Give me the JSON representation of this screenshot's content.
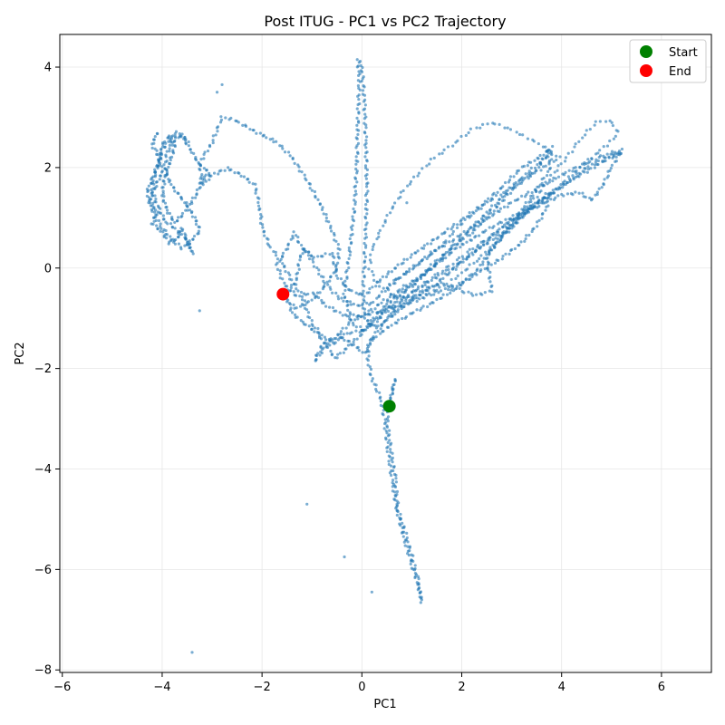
{
  "chart_data": {
    "type": "scatter",
    "title": "Post ITUG - PC1 vs PC2 Trajectory",
    "xlabel": "PC1",
    "ylabel": "PC2",
    "xlim": [
      -6.05,
      7.0
    ],
    "ylim": [
      -8.05,
      4.65
    ],
    "xticks": [
      -6,
      -4,
      -2,
      0,
      2,
      4,
      6
    ],
    "yticks": [
      -8,
      -6,
      -4,
      -2,
      0,
      2,
      4
    ],
    "grid": true,
    "legend_position": "top-right",
    "trajectory_color": "#1f77b4",
    "trajectory_path": [
      [
        0.55,
        -2.75
      ],
      [
        0.62,
        -2.45
      ],
      [
        0.66,
        -2.2
      ],
      [
        0.58,
        -2.6
      ],
      [
        0.5,
        -3.0
      ],
      [
        0.58,
        -3.6
      ],
      [
        0.67,
        -4.2
      ],
      [
        0.72,
        -4.8
      ],
      [
        0.88,
        -5.3
      ],
      [
        1.02,
        -5.8
      ],
      [
        1.12,
        -6.2
      ],
      [
        1.2,
        -6.65
      ],
      [
        1.12,
        -6.3
      ],
      [
        1.0,
        -5.9
      ],
      [
        0.85,
        -5.4
      ],
      [
        0.7,
        -4.8
      ],
      [
        0.6,
        -4.2
      ],
      [
        0.52,
        -3.6
      ],
      [
        0.45,
        -3.0
      ],
      [
        0.38,
        -2.6
      ],
      [
        0.2,
        -2.2
      ],
      [
        0.12,
        -1.8
      ],
      [
        0.15,
        -1.45
      ],
      [
        0.3,
        -1.35
      ],
      [
        0.5,
        -1.2
      ],
      [
        0.9,
        -0.95
      ],
      [
        1.4,
        -0.7
      ],
      [
        1.9,
        -0.4
      ],
      [
        2.3,
        -0.05
      ],
      [
        2.6,
        0.35
      ],
      [
        2.9,
        0.75
      ],
      [
        3.2,
        1.15
      ],
      [
        3.5,
        1.55
      ],
      [
        3.75,
        1.95
      ],
      [
        3.8,
        2.3
      ],
      [
        3.5,
        2.05
      ],
      [
        3.1,
        1.7
      ],
      [
        2.7,
        1.3
      ],
      [
        2.3,
        0.9
      ],
      [
        1.9,
        0.5
      ],
      [
        1.4,
        0.05
      ],
      [
        1.0,
        -0.35
      ],
      [
        0.6,
        -0.7
      ],
      [
        0.3,
        -1.0
      ],
      [
        0.05,
        -1.25
      ],
      [
        -0.2,
        -1.1
      ],
      [
        -0.35,
        -0.5
      ],
      [
        -0.25,
        0.3
      ],
      [
        -0.15,
        1.2
      ],
      [
        -0.1,
        2.1
      ],
      [
        -0.08,
        3.0
      ],
      [
        -0.05,
        3.7
      ],
      [
        -0.08,
        4.15
      ],
      [
        0.0,
        4.0
      ],
      [
        0.05,
        3.3
      ],
      [
        0.08,
        2.5
      ],
      [
        0.1,
        1.6
      ],
      [
        0.08,
        0.8
      ],
      [
        0.05,
        0.1
      ],
      [
        0.02,
        -0.5
      ],
      [
        0.05,
        -1.0
      ],
      [
        0.3,
        -1.2
      ],
      [
        0.6,
        -0.95
      ],
      [
        1.0,
        -0.65
      ],
      [
        1.5,
        -0.3
      ],
      [
        2.0,
        0.1
      ],
      [
        2.5,
        0.55
      ],
      [
        3.0,
        0.95
      ],
      [
        3.6,
        1.35
      ],
      [
        4.2,
        1.75
      ],
      [
        4.8,
        2.1
      ],
      [
        5.2,
        2.3
      ],
      [
        5.0,
        2.25
      ],
      [
        4.5,
        2.0
      ],
      [
        3.9,
        1.55
      ],
      [
        3.3,
        1.1
      ],
      [
        2.8,
        0.7
      ],
      [
        2.3,
        0.35
      ],
      [
        1.8,
        0.0
      ],
      [
        1.3,
        -0.3
      ],
      [
        0.9,
        -0.55
      ],
      [
        0.55,
        -0.8
      ],
      [
        0.3,
        -1.05
      ],
      [
        0.0,
        -1.25
      ],
      [
        -0.3,
        -1.3
      ],
      [
        -0.55,
        -1.5
      ],
      [
        -0.8,
        -1.35
      ],
      [
        -1.0,
        -1.1
      ],
      [
        -1.1,
        -0.85
      ],
      [
        -1.2,
        -0.55
      ],
      [
        -1.4,
        -0.25
      ],
      [
        -1.6,
        0.1
      ],
      [
        -1.85,
        0.45
      ],
      [
        -2.0,
        0.8
      ],
      [
        -2.05,
        1.25
      ],
      [
        -2.15,
        1.65
      ],
      [
        -2.4,
        1.85
      ],
      [
        -2.7,
        1.98
      ],
      [
        -3.0,
        1.85
      ],
      [
        -3.2,
        1.65
      ],
      [
        -3.25,
        2.1
      ],
      [
        -3.0,
        2.5
      ],
      [
        -2.8,
        3.0
      ],
      [
        -2.55,
        2.95
      ],
      [
        -2.3,
        2.8
      ],
      [
        -2.0,
        2.65
      ],
      [
        -1.7,
        2.5
      ],
      [
        -1.4,
        2.2
      ],
      [
        -1.1,
        1.75
      ],
      [
        -0.8,
        1.2
      ],
      [
        -0.6,
        0.75
      ],
      [
        -0.45,
        0.35
      ],
      [
        -0.5,
        0.0
      ],
      [
        -0.7,
        -0.3
      ],
      [
        -0.9,
        -0.55
      ],
      [
        -1.1,
        -0.7
      ],
      [
        -1.35,
        -0.8
      ],
      [
        -1.5,
        -0.6
      ],
      [
        -1.4,
        -0.9
      ],
      [
        -1.15,
        -1.1
      ],
      [
        -0.9,
        -1.3
      ],
      [
        -0.7,
        -1.55
      ],
      [
        -0.55,
        -1.8
      ],
      [
        -0.3,
        -1.6
      ],
      [
        -0.05,
        -1.35
      ],
      [
        0.2,
        -1.05
      ],
      [
        0.45,
        -0.75
      ],
      [
        0.75,
        -0.5
      ],
      [
        1.05,
        -0.3
      ],
      [
        1.35,
        -0.05
      ],
      [
        1.6,
        0.2
      ],
      [
        1.85,
        0.45
      ],
      [
        2.2,
        0.7
      ],
      [
        2.6,
        1.1
      ],
      [
        3.0,
        1.55
      ],
      [
        3.5,
        1.95
      ],
      [
        3.8,
        2.4
      ],
      [
        3.55,
        2.2
      ],
      [
        3.2,
        2.0
      ],
      [
        2.8,
        1.6
      ],
      [
        2.4,
        1.25
      ],
      [
        2.0,
        0.95
      ],
      [
        1.5,
        0.6
      ],
      [
        1.0,
        0.25
      ],
      [
        0.6,
        -0.05
      ],
      [
        0.3,
        -0.3
      ],
      [
        0.05,
        -0.55
      ],
      [
        -0.25,
        -0.45
      ],
      [
        -0.5,
        -0.15
      ],
      [
        -0.6,
        0.3
      ],
      [
        -0.95,
        0.2
      ],
      [
        -1.2,
        0.4
      ],
      [
        -1.35,
        0.7
      ],
      [
        -1.5,
        0.4
      ],
      [
        -1.7,
        0.05
      ],
      [
        -1.55,
        -0.35
      ],
      [
        -1.3,
        -0.55
      ],
      [
        -1.0,
        -0.5
      ],
      [
        -0.7,
        -0.75
      ],
      [
        -0.35,
        -0.95
      ],
      [
        0.0,
        -0.95
      ],
      [
        0.4,
        -0.85
      ],
      [
        0.8,
        -0.75
      ],
      [
        1.2,
        -0.6
      ],
      [
        1.6,
        -0.45
      ],
      [
        2.0,
        -0.3
      ],
      [
        2.4,
        -0.05
      ],
      [
        2.8,
        0.2
      ],
      [
        3.2,
        0.5
      ],
      [
        3.5,
        0.85
      ],
      [
        3.7,
        1.2
      ],
      [
        3.75,
        1.5
      ],
      [
        3.55,
        1.35
      ],
      [
        3.2,
        1.0
      ],
      [
        2.8,
        0.65
      ],
      [
        2.5,
        0.25
      ],
      [
        2.6,
        -0.45
      ],
      [
        2.3,
        -0.55
      ],
      [
        2.0,
        -0.45
      ],
      [
        1.6,
        -0.3
      ],
      [
        1.2,
        -0.45
      ],
      [
        0.85,
        -0.7
      ],
      [
        0.5,
        -1.0
      ],
      [
        0.25,
        -1.35
      ],
      [
        0.05,
        -1.7
      ],
      [
        -0.2,
        -1.5
      ],
      [
        -0.5,
        -1.35
      ],
      [
        -0.8,
        -1.55
      ],
      [
        -0.95,
        -1.85
      ],
      [
        -0.75,
        -1.6
      ],
      [
        -0.45,
        -1.3
      ],
      [
        -0.2,
        -1.05
      ],
      [
        0.1,
        -0.9
      ],
      [
        0.45,
        -0.65
      ],
      [
        0.8,
        -0.4
      ],
      [
        1.2,
        -0.15
      ],
      [
        1.6,
        0.15
      ],
      [
        1.9,
        0.4
      ],
      [
        2.25,
        0.6
      ],
      [
        2.65,
        0.85
      ],
      [
        3.1,
        1.05
      ],
      [
        3.55,
        1.25
      ],
      [
        4.0,
        1.45
      ],
      [
        4.35,
        1.5
      ],
      [
        4.6,
        1.35
      ],
      [
        4.8,
        1.6
      ],
      [
        5.0,
        2.0
      ],
      [
        5.2,
        2.35
      ],
      [
        4.85,
        2.25
      ],
      [
        4.4,
        2.05
      ],
      [
        3.9,
        1.8
      ],
      [
        3.45,
        1.55
      ],
      [
        3.0,
        1.3
      ],
      [
        2.6,
        1.05
      ],
      [
        2.2,
        0.8
      ],
      [
        1.8,
        0.55
      ],
      [
        1.4,
        0.3
      ],
      [
        1.0,
        0.0
      ],
      [
        0.7,
        -0.25
      ],
      [
        0.45,
        -0.45
      ],
      [
        0.2,
        -0.7
      ],
      [
        -0.1,
        -0.75
      ],
      [
        -0.45,
        -0.6
      ],
      [
        -0.7,
        -0.35
      ],
      [
        -0.85,
        -0.1
      ],
      [
        -1.0,
        0.15
      ],
      [
        -1.15,
        0.4
      ],
      [
        -1.25,
        0.15
      ],
      [
        -1.3,
        -0.2
      ],
      [
        -1.45,
        -0.45
      ],
      [
        -1.58,
        -0.52
      ]
    ],
    "trajectory_path_2": [
      [
        0.55,
        -0.3
      ],
      [
        0.9,
        -0.1
      ],
      [
        1.3,
        0.2
      ],
      [
        1.65,
        0.5
      ],
      [
        1.9,
        0.8
      ],
      [
        2.2,
        1.05
      ],
      [
        2.5,
        1.3
      ],
      [
        2.9,
        1.55
      ],
      [
        3.3,
        1.8
      ],
      [
        3.7,
        2.05
      ],
      [
        3.95,
        2.2
      ],
      [
        3.75,
        2.35
      ],
      [
        3.4,
        2.55
      ],
      [
        3.0,
        2.75
      ],
      [
        2.6,
        2.9
      ],
      [
        2.2,
        2.75
      ],
      [
        1.8,
        2.45
      ],
      [
        1.4,
        2.15
      ],
      [
        1.1,
        1.85
      ],
      [
        0.8,
        1.5
      ],
      [
        0.55,
        1.1
      ],
      [
        0.35,
        0.7
      ],
      [
        0.2,
        0.35
      ],
      [
        0.15,
        0.0
      ],
      [
        0.3,
        -0.3
      ],
      [
        0.65,
        -0.55
      ],
      [
        1.0,
        -0.6
      ],
      [
        1.35,
        -0.5
      ],
      [
        1.65,
        -0.35
      ],
      [
        2.0,
        -0.1
      ],
      [
        2.35,
        0.2
      ],
      [
        2.7,
        0.5
      ],
      [
        3.05,
        0.85
      ],
      [
        3.3,
        1.2
      ],
      [
        3.6,
        1.55
      ],
      [
        3.85,
        1.9
      ],
      [
        4.1,
        2.2
      ],
      [
        4.4,
        2.6
      ],
      [
        4.7,
        2.9
      ],
      [
        4.95,
        2.95
      ],
      [
        5.15,
        2.7
      ],
      [
        4.9,
        2.45
      ],
      [
        4.55,
        2.15
      ],
      [
        4.2,
        1.85
      ],
      [
        3.85,
        1.55
      ],
      [
        3.5,
        1.3
      ],
      [
        3.15,
        1.05
      ],
      [
        2.8,
        0.8
      ],
      [
        2.45,
        0.55
      ],
      [
        2.1,
        0.3
      ],
      [
        1.75,
        0.05
      ],
      [
        1.4,
        -0.2
      ],
      [
        1.05,
        -0.45
      ],
      [
        0.75,
        -0.7
      ],
      [
        0.5,
        -0.95
      ]
    ],
    "left_cluster": [
      [
        -4.1,
        2.7
      ],
      [
        -4.2,
        2.45
      ],
      [
        -4.05,
        2.2
      ],
      [
        -4.0,
        1.9
      ],
      [
        -4.15,
        1.6
      ],
      [
        -4.25,
        1.35
      ],
      [
        -4.1,
        1.1
      ],
      [
        -4.2,
        0.9
      ],
      [
        -4.0,
        0.7
      ],
      [
        -3.85,
        0.5
      ],
      [
        -3.7,
        0.6
      ],
      [
        -3.6,
        0.8
      ],
      [
        -3.55,
        0.65
      ],
      [
        -3.45,
        0.45
      ],
      [
        -3.4,
        0.3
      ],
      [
        -3.5,
        0.55
      ],
      [
        -3.7,
        0.75
      ],
      [
        -3.95,
        0.95
      ],
      [
        -4.1,
        1.25
      ],
      [
        -4.2,
        1.55
      ],
      [
        -4.15,
        1.85
      ],
      [
        -4.05,
        2.15
      ],
      [
        -4.0,
        2.45
      ],
      [
        -3.85,
        2.65
      ],
      [
        -3.75,
        2.4
      ],
      [
        -3.85,
        2.1
      ],
      [
        -3.95,
        1.8
      ],
      [
        -4.0,
        1.45
      ],
      [
        -3.9,
        1.15
      ],
      [
        -3.75,
        0.9
      ],
      [
        -3.6,
        1.05
      ],
      [
        -3.45,
        1.25
      ],
      [
        -3.3,
        1.5
      ],
      [
        -3.2,
        1.75
      ],
      [
        -3.05,
        1.9
      ],
      [
        -3.25,
        2.05
      ],
      [
        -3.4,
        2.3
      ],
      [
        -3.55,
        2.55
      ],
      [
        -3.7,
        2.7
      ],
      [
        -3.85,
        2.55
      ],
      [
        -4.0,
        2.35
      ],
      [
        -4.1,
        2.05
      ],
      [
        -4.2,
        1.75
      ],
      [
        -4.3,
        1.55
      ],
      [
        -4.25,
        1.3
      ],
      [
        -4.15,
        1.05
      ],
      [
        -4.0,
        0.8
      ],
      [
        -3.8,
        0.55
      ],
      [
        -3.6,
        0.4
      ],
      [
        -3.4,
        0.55
      ],
      [
        -3.25,
        0.75
      ],
      [
        -3.35,
        1.0
      ],
      [
        -3.5,
        1.25
      ],
      [
        -3.7,
        1.5
      ],
      [
        -3.85,
        1.7
      ],
      [
        -3.95,
        2.0
      ],
      [
        -3.9,
        2.3
      ],
      [
        -3.75,
        2.55
      ],
      [
        -3.6,
        2.65
      ],
      [
        -3.45,
        2.5
      ]
    ],
    "outliers": [
      [
        -3.4,
        -7.65
      ],
      [
        -0.35,
        -5.75
      ],
      [
        0.2,
        -6.45
      ],
      [
        -1.1,
        -4.7
      ],
      [
        -3.25,
        -0.85
      ],
      [
        -2.8,
        3.65
      ],
      [
        -2.9,
        3.5
      ],
      [
        0.9,
        1.3
      ]
    ],
    "start": {
      "x": 0.55,
      "y": -2.75,
      "color": "#008000"
    },
    "end": {
      "x": -1.58,
      "y": -0.52,
      "color": "#ff0000"
    },
    "legend": [
      {
        "label": "Start",
        "color": "#008000"
      },
      {
        "label": "End",
        "color": "#ff0000"
      }
    ]
  }
}
